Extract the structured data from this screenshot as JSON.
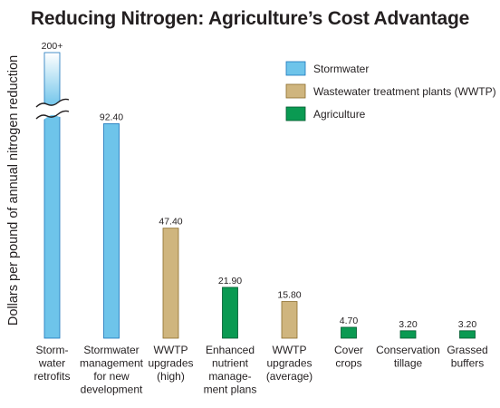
{
  "chart_data": {
    "type": "bar",
    "title": "Reducing Nitrogen: Agriculture’s Cost Advantage",
    "ylabel": "Dollars per pound of annual nitrogen reduction",
    "xlabel": "",
    "ylim": [
      0,
      100
    ],
    "axis_break": true,
    "grid": false,
    "legend_position": "top-right",
    "series": [
      {
        "name": "Stormwater",
        "color": "#6ec4ea",
        "stroke": "#1b75bb"
      },
      {
        "name": "Wastewater treatment plants (WWTP)",
        "color": "#cfb57e",
        "stroke": "#8c6d2c"
      },
      {
        "name": "Agriculture",
        "color": "#0a9a52",
        "stroke": "#00592e"
      }
    ],
    "categories": [
      "Storm-\nwater\nretrofits",
      "Stormwater\nmanagement\nfor new\ndevelopment",
      "WWTP\nupgrades\n(high)",
      "Enhanced\nnutrient\nmanage-\nment plans",
      "WWTP\nupgrades\n(average)",
      "Cover\ncrops",
      "Conservation\ntillage",
      "Grassed\nbuffers"
    ],
    "bars": [
      {
        "value": 200,
        "label": "200+",
        "series": 0,
        "broken": true
      },
      {
        "value": 92.4,
        "label": "92.40",
        "series": 0
      },
      {
        "value": 47.4,
        "label": "47.40",
        "series": 1
      },
      {
        "value": 21.9,
        "label": "21.90",
        "series": 2
      },
      {
        "value": 15.8,
        "label": "15.80",
        "series": 1
      },
      {
        "value": 4.7,
        "label": "4.70",
        "series": 2
      },
      {
        "value": 3.2,
        "label": "3.20",
        "series": 2
      },
      {
        "value": 3.2,
        "label": "3.20",
        "series": 2
      }
    ]
  }
}
